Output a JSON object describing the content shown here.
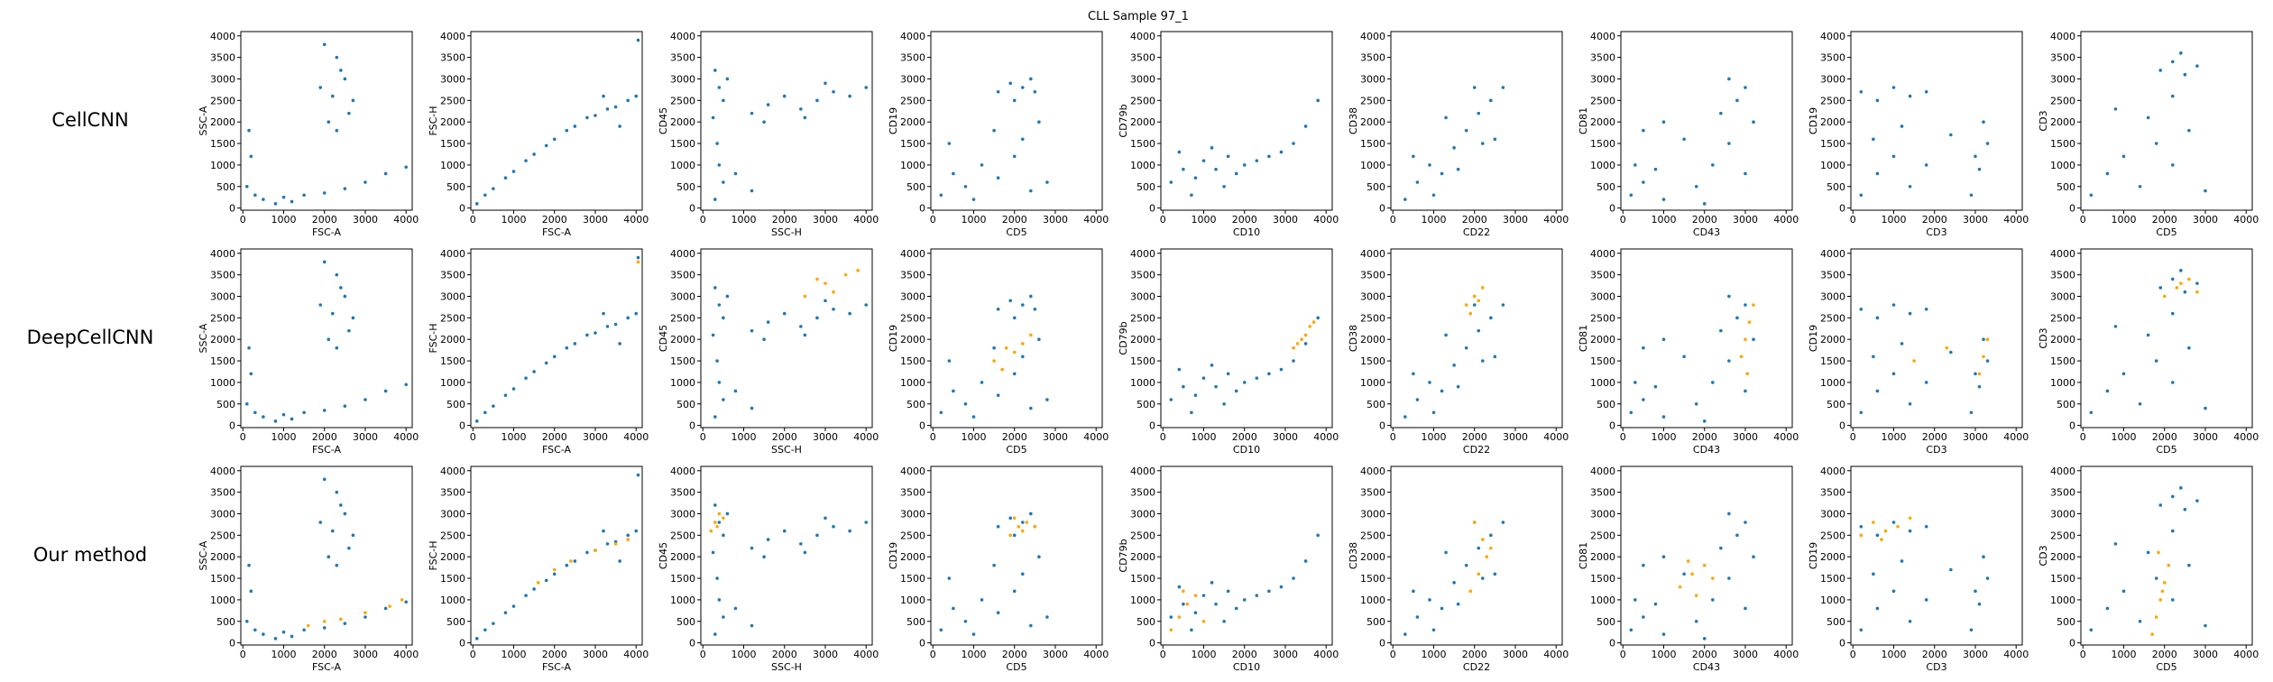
{
  "title": "CLL Sample 97_1",
  "methods": [
    "CellCNN",
    "DeepCellCNN",
    "Our method"
  ],
  "chart_data": [
    {
      "type": "scatter",
      "x_label": "FSC-A",
      "y_label": "SSC-A",
      "xlim": [
        -50,
        4150
      ],
      "ylim": [
        -50,
        4100
      ],
      "xticks": [
        0,
        1000,
        2000,
        3000,
        4000
      ],
      "yticks": [
        0,
        500,
        1000,
        1500,
        2000,
        2500,
        3000,
        3500,
        4000
      ],
      "cells": {
        "color": "#1f77b4",
        "x": [
          2000,
          2300,
          2500,
          2200,
          2600,
          2100,
          2400,
          1900,
          2700,
          2300,
          500,
          1000,
          1500,
          2000,
          2500,
          3000,
          3500,
          4000,
          100,
          200,
          150,
          300,
          800,
          1200
        ],
        "y": [
          3800,
          3500,
          3000,
          2600,
          2200,
          2000,
          3200,
          2800,
          2500,
          1800,
          200,
          250,
          300,
          350,
          450,
          600,
          800,
          950,
          500,
          1200,
          1800,
          300,
          100,
          150
        ]
      },
      "highlights": [
        {
          "color": "#ffa500",
          "x": [],
          "y": []
        },
        {
          "color": "#ffa500",
          "x": [],
          "y": []
        },
        {
          "color": "#ffa500",
          "x": [
            1600,
            2000,
            2400,
            3000,
            3600,
            3900
          ],
          "y": [
            400,
            500,
            550,
            700,
            850,
            1000
          ]
        }
      ]
    },
    {
      "type": "scatter",
      "x_label": "FSC-A",
      "y_label": "FSC-H",
      "xlim": [
        -50,
        4150
      ],
      "ylim": [
        -50,
        4100
      ],
      "xticks": [
        0,
        1000,
        2000,
        3000,
        4000
      ],
      "yticks": [
        0,
        500,
        1000,
        1500,
        2000,
        2500,
        3000,
        3500,
        4000
      ],
      "cells": {
        "color": "#1f77b4",
        "x": [
          100,
          300,
          500,
          800,
          1000,
          1300,
          1500,
          1800,
          2000,
          2300,
          2500,
          2800,
          3000,
          3300,
          3500,
          3800,
          4000,
          4050,
          3600,
          3200
        ],
        "y": [
          100,
          300,
          450,
          700,
          850,
          1100,
          1250,
          1450,
          1600,
          1800,
          1900,
          2100,
          2150,
          2300,
          2350,
          2500,
          2600,
          3900,
          1900,
          2600
        ]
      },
      "highlights": [
        {
          "color": "#ffa500",
          "x": [],
          "y": []
        },
        {
          "color": "#ffa500",
          "x": [
            4050
          ],
          "y": [
            3800
          ]
        },
        {
          "color": "#ffa500",
          "x": [
            1600,
            2000,
            2400,
            3000,
            3500,
            3800
          ],
          "y": [
            1400,
            1700,
            1900,
            2150,
            2300,
            2400
          ]
        }
      ]
    },
    {
      "type": "scatter",
      "x_label": "SSC-H",
      "y_label": "CD45",
      "xlim": [
        -50,
        4150
      ],
      "ylim": [
        -50,
        4100
      ],
      "xticks": [
        0,
        1000,
        2000,
        3000,
        4000
      ],
      "yticks": [
        0,
        500,
        1000,
        1500,
        2000,
        2500,
        3000,
        3500,
        4000
      ],
      "cells": {
        "color": "#1f77b4",
        "x": [
          300,
          400,
          500,
          250,
          350,
          600,
          1200,
          1600,
          2000,
          2400,
          2800,
          3200,
          3600,
          4000,
          1500,
          2500,
          3000,
          500,
          800,
          1200,
          300,
          400
        ],
        "y": [
          3200,
          2800,
          2500,
          2100,
          1500,
          3000,
          2200,
          2400,
          2600,
          2300,
          2500,
          2700,
          2600,
          2800,
          2000,
          2100,
          2900,
          600,
          800,
          400,
          200,
          1000
        ]
      },
      "highlights": [
        {
          "color": "#ffa500",
          "x": [],
          "y": []
        },
        {
          "color": "#ffa500",
          "x": [
            2500,
            3000,
            3500,
            3800,
            3200,
            2800
          ],
          "y": [
            3000,
            3300,
            3500,
            3600,
            3100,
            3400
          ]
        },
        {
          "color": "#ffa500",
          "x": [
            200,
            300,
            400,
            350,
            500
          ],
          "y": [
            2600,
            2800,
            3000,
            2700,
            2900
          ]
        }
      ]
    },
    {
      "type": "scatter",
      "x_label": "CD5",
      "y_label": "CD19",
      "xlim": [
        -50,
        4150
      ],
      "ylim": [
        -50,
        4100
      ],
      "xticks": [
        0,
        1000,
        2000,
        3000,
        4000
      ],
      "yticks": [
        0,
        500,
        1000,
        1500,
        2000,
        2500,
        3000,
        3500,
        4000
      ],
      "cells": {
        "color": "#1f77b4",
        "x": [
          1600,
          1900,
          2200,
          2500,
          2000,
          2400,
          200,
          500,
          800,
          1200,
          1600,
          2000,
          2400,
          2800,
          1500,
          2200,
          2600,
          400,
          1000
        ],
        "y": [
          2700,
          2900,
          2800,
          2700,
          2500,
          3000,
          300,
          800,
          500,
          1000,
          700,
          1200,
          400,
          600,
          1800,
          1600,
          2000,
          1500,
          200
        ]
      },
      "highlights": [
        {
          "color": "#ffa500",
          "x": [],
          "y": []
        },
        {
          "color": "#ffa500",
          "x": [
            1500,
            1800,
            2000,
            2200,
            1700,
            2400
          ],
          "y": [
            1500,
            1800,
            1700,
            1900,
            1300,
            2100
          ]
        },
        {
          "color": "#ffa500",
          "x": [
            1900,
            2100,
            2300,
            2000,
            2200,
            2500
          ],
          "y": [
            2500,
            2700,
            2800,
            2900,
            2600,
            2700
          ]
        }
      ]
    },
    {
      "type": "scatter",
      "x_label": "CD10",
      "y_label": "CD79b",
      "xlim": [
        -50,
        4150
      ],
      "ylim": [
        -50,
        4100
      ],
      "xticks": [
        0,
        1000,
        2000,
        3000,
        4000
      ],
      "yticks": [
        0,
        500,
        1000,
        1500,
        2000,
        2500,
        3000,
        3500,
        4000
      ],
      "cells": {
        "color": "#1f77b4",
        "x": [
          200,
          500,
          800,
          1000,
          1300,
          1600,
          2000,
          2300,
          2600,
          2900,
          3200,
          3500,
          3800,
          700,
          1200,
          1800,
          400,
          1500
        ],
        "y": [
          600,
          900,
          700,
          1100,
          900,
          1200,
          1000,
          1100,
          1200,
          1300,
          1500,
          1900,
          2500,
          300,
          1400,
          800,
          1300,
          500
        ]
      },
      "highlights": [
        {
          "color": "#ffa500",
          "x": [],
          "y": []
        },
        {
          "color": "#ffa500",
          "x": [
            3200,
            3400,
            3500,
            3600,
            3700,
            3300
          ],
          "y": [
            1800,
            2000,
            2100,
            2300,
            2400,
            1900
          ]
        },
        {
          "color": "#ffa500",
          "x": [
            200,
            400,
            600,
            800,
            1000,
            500
          ],
          "y": [
            300,
            600,
            900,
            1100,
            500,
            1200
          ]
        }
      ]
    },
    {
      "type": "scatter",
      "x_label": "CD22",
      "y_label": "CD38",
      "xlim": [
        -50,
        4150
      ],
      "ylim": [
        -50,
        4100
      ],
      "xticks": [
        0,
        1000,
        2000,
        3000,
        4000
      ],
      "yticks": [
        0,
        500,
        1000,
        1500,
        2000,
        2500,
        3000,
        3500,
        4000
      ],
      "cells": {
        "color": "#1f77b4",
        "x": [
          300,
          600,
          900,
          1200,
          1500,
          1800,
          2100,
          2400,
          2700,
          1000,
          1600,
          2200,
          500,
          2000,
          2500,
          1300
        ],
        "y": [
          200,
          600,
          1000,
          800,
          1400,
          1800,
          2200,
          2500,
          2800,
          300,
          900,
          1500,
          1200,
          2800,
          1600,
          2100
        ]
      },
      "highlights": [
        {
          "color": "#ffa500",
          "x": [],
          "y": []
        },
        {
          "color": "#ffa500",
          "x": [
            1800,
            2000,
            2200,
            1900,
            2100
          ],
          "y": [
            2800,
            3000,
            3200,
            2600,
            2900
          ]
        },
        {
          "color": "#ffa500",
          "x": [
            1900,
            2100,
            2300,
            2200,
            2000,
            2400
          ],
          "y": [
            1200,
            1600,
            2000,
            2400,
            2800,
            2200
          ]
        }
      ]
    },
    {
      "type": "scatter",
      "x_label": "CD43",
      "y_label": "CD81",
      "xlim": [
        -50,
        4150
      ],
      "ylim": [
        -50,
        4100
      ],
      "xticks": [
        0,
        1000,
        2000,
        3000,
        4000
      ],
      "yticks": [
        0,
        500,
        1000,
        1500,
        2000,
        2500,
        3000,
        3500,
        4000
      ],
      "cells": {
        "color": "#1f77b4",
        "x": [
          200,
          500,
          800,
          1000,
          300,
          1800,
          2200,
          2600,
          3000,
          2400,
          2800,
          3200,
          2000,
          500,
          1000,
          1500,
          2600,
          3000
        ],
        "y": [
          300,
          600,
          900,
          200,
          1000,
          500,
          1000,
          1500,
          800,
          2200,
          2500,
          2000,
          100,
          1800,
          2000,
          1600,
          3000,
          2800
        ]
      },
      "highlights": [
        {
          "color": "#ffa500",
          "x": [],
          "y": []
        },
        {
          "color": "#ffa500",
          "x": [
            2900,
            3000,
            3100,
            3200,
            3050
          ],
          "y": [
            1600,
            2000,
            2400,
            2800,
            1200
          ]
        },
        {
          "color": "#ffa500",
          "x": [
            1400,
            1700,
            2000,
            2200,
            1800,
            1600
          ],
          "y": [
            1300,
            1600,
            1800,
            1500,
            1100,
            1900
          ]
        }
      ]
    },
    {
      "type": "scatter",
      "x_label": "CD3",
      "y_label": "CD19",
      "xlim": [
        -50,
        4150
      ],
      "ylim": [
        -50,
        4100
      ],
      "xticks": [
        0,
        1000,
        2000,
        3000,
        4000
      ],
      "yticks": [
        0,
        500,
        1000,
        1500,
        2000,
        2500,
        3000,
        3500,
        4000
      ],
      "cells": {
        "color": "#1f77b4",
        "x": [
          200,
          600,
          1000,
          1400,
          1800,
          200,
          600,
          1000,
          1400,
          1800,
          1200,
          2900,
          3100,
          3300,
          3200,
          3000,
          2400,
          500
        ],
        "y": [
          2700,
          2500,
          2800,
          2600,
          2700,
          300,
          800,
          1200,
          500,
          1000,
          1900,
          300,
          900,
          1500,
          2000,
          1200,
          1700,
          1600
        ]
      },
      "highlights": [
        {
          "color": "#ffa500",
          "x": [],
          "y": []
        },
        {
          "color": "#ffa500",
          "x": [
            3100,
            3200,
            3300,
            1500,
            2300
          ],
          "y": [
            1200,
            1600,
            2000,
            1500,
            1800
          ]
        },
        {
          "color": "#ffa500",
          "x": [
            200,
            500,
            800,
            1100,
            1400,
            700
          ],
          "y": [
            2500,
            2800,
            2600,
            2700,
            2900,
            2400
          ]
        }
      ]
    },
    {
      "type": "scatter",
      "x_label": "CD5",
      "y_label": "CD3",
      "xlim": [
        -50,
        4150
      ],
      "ylim": [
        -50,
        4100
      ],
      "xticks": [
        0,
        1000,
        2000,
        3000,
        4000
      ],
      "yticks": [
        0,
        500,
        1000,
        1500,
        2000,
        2500,
        3000,
        3500,
        4000
      ],
      "cells": {
        "color": "#1f77b4",
        "x": [
          1900,
          2200,
          2500,
          2800,
          2400,
          200,
          600,
          1000,
          1400,
          1800,
          2200,
          2600,
          3000,
          800,
          1600,
          2200
        ],
        "y": [
          3200,
          3400,
          3100,
          3300,
          3600,
          300,
          800,
          1200,
          500,
          1500,
          1000,
          1800,
          400,
          2300,
          2100,
          2600
        ]
      },
      "highlights": [
        {
          "color": "#ffa500",
          "x": [],
          "y": []
        },
        {
          "color": "#ffa500",
          "x": [
            2000,
            2300,
            2600,
            2800,
            2400
          ],
          "y": [
            3000,
            3200,
            3400,
            3100,
            3300
          ]
        },
        {
          "color": "#ffa500",
          "x": [
            1700,
            1800,
            1900,
            2000,
            2100,
            1850,
            1950
          ],
          "y": [
            200,
            600,
            1000,
            1400,
            1800,
            2100,
            1200
          ]
        }
      ]
    }
  ]
}
